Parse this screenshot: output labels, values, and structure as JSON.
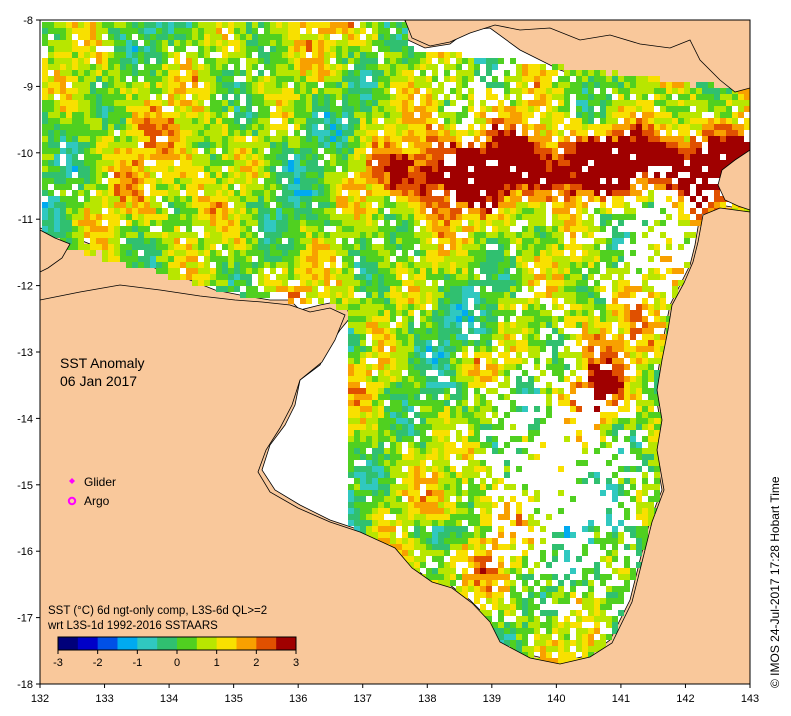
{
  "title": {
    "line1": "SST Anomaly",
    "line2": "06 Jan 2017"
  },
  "legend": [
    {
      "label": "Glider",
      "color": "#ff00ff",
      "symbol": "diamond"
    },
    {
      "label": "Argo",
      "color": "#ff00ff",
      "symbol": "ring"
    }
  ],
  "caption": {
    "line1": "SST (°C) 6d ngt-only comp, L3S-6d QL>=2",
    "line2": "wrt L3S-1d 1992-2016 SSTAARS"
  },
  "colorbar": {
    "min": -3,
    "max": 3,
    "ticks": [
      "-3",
      "-2",
      "-1",
      "0",
      "1",
      "2",
      "3"
    ],
    "colors": [
      "#00007a",
      "#0000c8",
      "#0050e6",
      "#00aaf0",
      "#30c8c0",
      "#30c070",
      "#50d020",
      "#b8e600",
      "#f8e000",
      "#f8a000",
      "#e05000",
      "#a00000"
    ]
  },
  "credit": "© IMOS 24-Jul-2017 17:28 Hobart Time",
  "x_axis": {
    "range": [
      132,
      143
    ],
    "ticks": [
      "132",
      "133",
      "134",
      "135",
      "136",
      "137",
      "138",
      "139",
      "140",
      "141",
      "142",
      "143"
    ]
  },
  "y_axis": {
    "range": [
      -18,
      -8
    ],
    "ticks": [
      "-8",
      "-9",
      "-10",
      "-11",
      "-12",
      "-13",
      "-14",
      "-15",
      "-16",
      "-17",
      "-18"
    ]
  },
  "colors": {
    "land": "#f9c89b",
    "nodata": "#ffffff",
    "coast": "#000000"
  }
}
